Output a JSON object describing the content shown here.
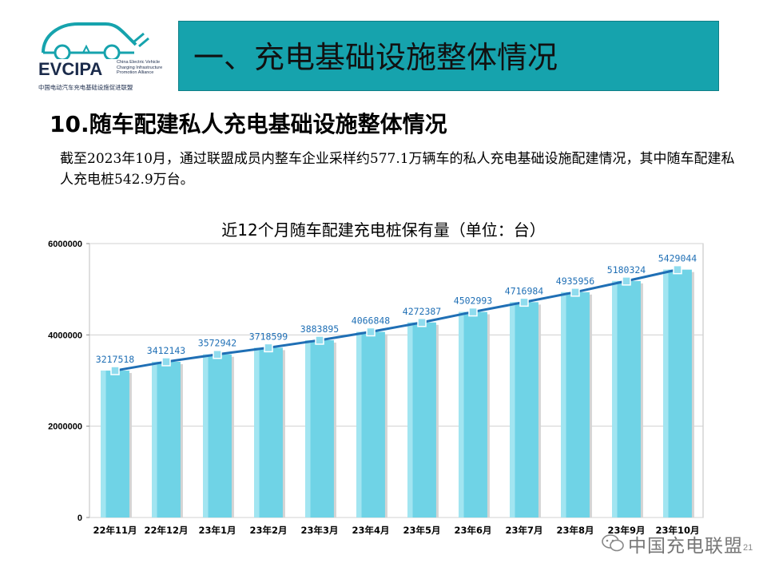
{
  "logo": {
    "name": "EVCIPA",
    "subtitle_lines": [
      "China Electric Vehicle",
      "Charging Infrastructure",
      "Promotion Alliance"
    ],
    "cn_name": "中国电动汽车充电基础设施促进联盟"
  },
  "header": {
    "title": "一、充电基础设施整体情况"
  },
  "section": {
    "title": "10.随车配建私人充电基础设施整体情况",
    "paragraph": "截至2023年10月，通过联盟成员内整车企业采样约577.1万辆车的私人充电基础设施配建情况，其中随车配建私人充电桩542.9万台。"
  },
  "chart_data": {
    "type": "bar",
    "title": "近12个月随车配建充电桩保有量（单位：台）",
    "categories": [
      "22年11月",
      "22年12月",
      "23年1月",
      "23年2月",
      "23年3月",
      "23年4月",
      "23年5月",
      "23年6月",
      "23年7月",
      "23年8月",
      "23年9月",
      "23年10月"
    ],
    "values": [
      3217518,
      3412143,
      3572942,
      3718599,
      3883895,
      4066848,
      4272387,
      4502993,
      4716984,
      4935956,
      5180324,
      5429044
    ],
    "overlay": "line",
    "ylim": [
      0,
      6000000
    ],
    "yticks": [
      0,
      2000000,
      4000000,
      6000000
    ],
    "xlabel": "",
    "ylabel": "",
    "grid": true,
    "colors": {
      "bar": "#6fd3e6",
      "line": "#1f6fb5",
      "label": "#1f6fb5"
    }
  },
  "footer": {
    "brand": "中国充电联盟",
    "page_number": "21"
  }
}
